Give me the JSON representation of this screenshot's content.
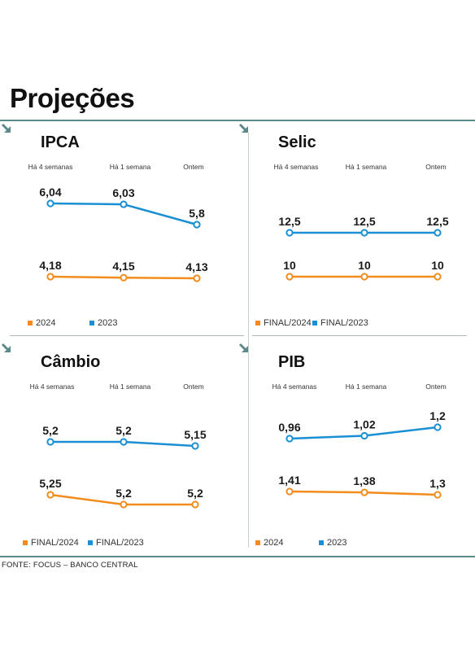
{
  "page": {
    "title": "Projeções",
    "source": "FONTE: FOCUS – BANCO CENTRAL"
  },
  "colors": {
    "orange": "#f28c1c",
    "blue": "#1b8fd3"
  },
  "chart_data": [
    {
      "id": "ipca",
      "type": "line",
      "title": "IPCA",
      "icon": "arrow-down-right-icon",
      "categories": [
        "Há 4 semanas",
        "Há 1 semana",
        "Ontem"
      ],
      "series": [
        {
          "name": "2023",
          "color": "#1b8fd3",
          "values": [
            6.04,
            6.03,
            5.8
          ],
          "labels": [
            "6,04",
            "6,03",
            "5,8"
          ]
        },
        {
          "name": "2024",
          "color": "#f28c1c",
          "values": [
            4.18,
            4.15,
            4.13
          ],
          "labels": [
            "4,18",
            "4,15",
            "4,13"
          ]
        }
      ],
      "legend": [
        "2024",
        "2023"
      ]
    },
    {
      "id": "selic",
      "type": "line",
      "title": "Selic",
      "icon": "arrow-down-right-icon",
      "categories": [
        "Há 4 semanas",
        "Há 1 semana",
        "Ontem"
      ],
      "series": [
        {
          "name": "FINAL/2023",
          "color": "#1b8fd3",
          "values": [
            12.5,
            12.5,
            12.5
          ],
          "labels": [
            "12,5",
            "12,5",
            "12,5"
          ]
        },
        {
          "name": "FINAL/2024",
          "color": "#f28c1c",
          "values": [
            10,
            10,
            10
          ],
          "labels": [
            "10",
            "10",
            "10"
          ]
        }
      ],
      "legend": [
        "FINAL/2024",
        "FINAL/2023"
      ]
    },
    {
      "id": "cambio",
      "type": "line",
      "title": "Câmbio",
      "icon": "arrow-down-right-icon",
      "categories": [
        "Há 4 semanas",
        "Há 1 semana",
        "Ontem"
      ],
      "series": [
        {
          "name": "FINAL/2023",
          "color": "#1b8fd3",
          "values": [
            5.2,
            5.2,
            5.15
          ],
          "labels": [
            "5,2",
            "5,2",
            "5,15"
          ]
        },
        {
          "name": "FINAL/2024",
          "color": "#f28c1c",
          "values": [
            5.25,
            5.2,
            5.2
          ],
          "labels": [
            "5,25",
            "5,2",
            "5,2"
          ]
        }
      ],
      "legend": [
        "FINAL/2024",
        "FINAL/2023"
      ]
    },
    {
      "id": "pib",
      "type": "line",
      "title": "PIB",
      "icon": "arrow-down-right-icon",
      "categories": [
        "Há 4 semanas",
        "Há 1 semana",
        "Ontem"
      ],
      "series": [
        {
          "name": "2023",
          "color": "#1b8fd3",
          "values": [
            0.96,
            1.02,
            1.2
          ],
          "labels": [
            "0,96",
            "1,02",
            "1,2"
          ]
        },
        {
          "name": "2024",
          "color": "#f28c1c",
          "values": [
            1.41,
            1.38,
            1.3
          ],
          "labels": [
            "1,41",
            "1,38",
            "1,3"
          ]
        }
      ],
      "legend": [
        "2024",
        "2023"
      ]
    }
  ]
}
